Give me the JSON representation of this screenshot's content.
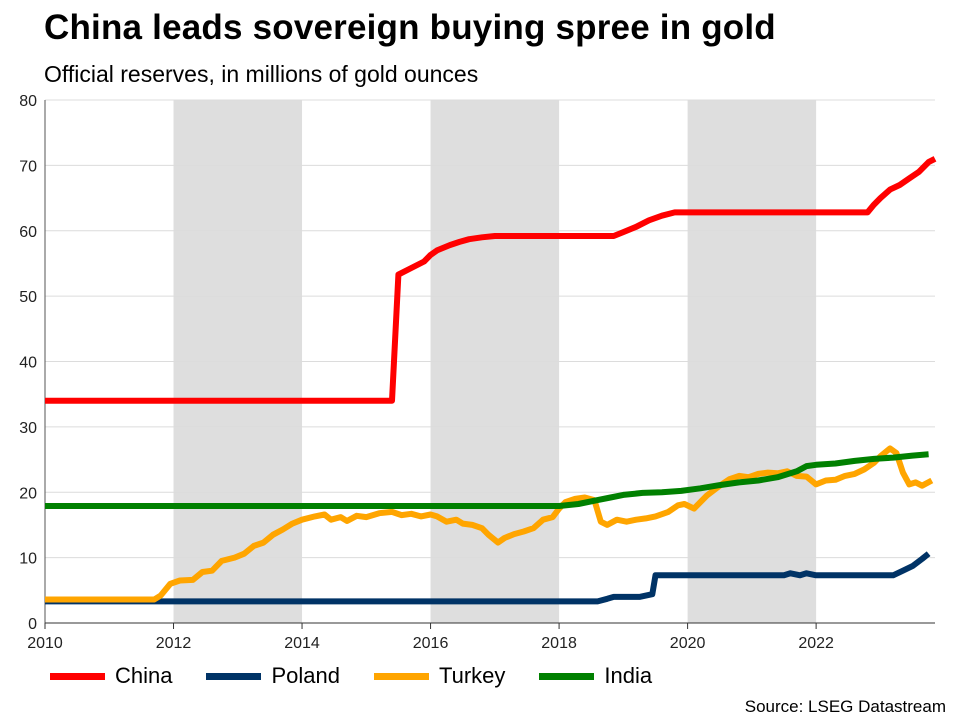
{
  "title": "China leads sovereign buying spree in gold",
  "subtitle": "Official reserves, in millions of gold ounces",
  "source": "Source: LSEG Datastream",
  "chart_data": {
    "type": "line",
    "xlim": [
      2010,
      2023.85
    ],
    "ylim": [
      0,
      80
    ],
    "x_ticks": [
      2010,
      2012,
      2014,
      2016,
      2018,
      2020,
      2022
    ],
    "y_ticks": [
      0,
      10,
      20,
      30,
      40,
      50,
      60,
      70,
      80
    ],
    "shaded_periods": [
      [
        2012,
        2014
      ],
      [
        2016,
        2018
      ],
      [
        2020,
        2022
      ]
    ],
    "grid": "horizontal",
    "series": [
      {
        "name": "China",
        "color": "#ff0000",
        "points": [
          [
            2010.0,
            34.0
          ],
          [
            2015.4,
            34.0
          ],
          [
            2015.5,
            53.3
          ],
          [
            2015.7,
            54.3
          ],
          [
            2015.9,
            55.3
          ],
          [
            2016.0,
            56.3
          ],
          [
            2016.1,
            57.0
          ],
          [
            2016.3,
            57.8
          ],
          [
            2016.45,
            58.3
          ],
          [
            2016.6,
            58.7
          ],
          [
            2016.8,
            59.0
          ],
          [
            2017.0,
            59.2
          ],
          [
            2018.85,
            59.2
          ],
          [
            2019.0,
            59.8
          ],
          [
            2019.2,
            60.6
          ],
          [
            2019.4,
            61.6
          ],
          [
            2019.6,
            62.3
          ],
          [
            2019.8,
            62.8
          ],
          [
            2022.8,
            62.8
          ],
          [
            2022.9,
            64.0
          ],
          [
            2023.0,
            65.0
          ],
          [
            2023.15,
            66.3
          ],
          [
            2023.3,
            67.0
          ],
          [
            2023.45,
            68.0
          ],
          [
            2023.6,
            69.0
          ],
          [
            2023.75,
            70.5
          ],
          [
            2023.85,
            71.0
          ]
        ]
      },
      {
        "name": "Poland",
        "color": "#003366",
        "points": [
          [
            2010.0,
            3.3
          ],
          [
            2018.6,
            3.3
          ],
          [
            2018.75,
            3.7
          ],
          [
            2018.85,
            4.0
          ],
          [
            2019.25,
            4.0
          ],
          [
            2019.45,
            4.4
          ],
          [
            2019.5,
            7.3
          ],
          [
            2021.5,
            7.3
          ],
          [
            2021.6,
            7.6
          ],
          [
            2021.75,
            7.3
          ],
          [
            2021.85,
            7.6
          ],
          [
            2022.0,
            7.3
          ],
          [
            2023.2,
            7.3
          ],
          [
            2023.35,
            8.0
          ],
          [
            2023.5,
            8.7
          ],
          [
            2023.65,
            9.8
          ],
          [
            2023.75,
            10.6
          ]
        ]
      },
      {
        "name": "Turkey",
        "color": "#ffa500",
        "points": [
          [
            2010.0,
            3.6
          ],
          [
            2011.7,
            3.6
          ],
          [
            2011.8,
            4.2
          ],
          [
            2011.95,
            6.0
          ],
          [
            2012.1,
            6.5
          ],
          [
            2012.3,
            6.6
          ],
          [
            2012.45,
            7.8
          ],
          [
            2012.6,
            8.0
          ],
          [
            2012.75,
            9.5
          ],
          [
            2012.95,
            10.0
          ],
          [
            2013.1,
            10.6
          ],
          [
            2013.25,
            11.8
          ],
          [
            2013.4,
            12.3
          ],
          [
            2013.55,
            13.5
          ],
          [
            2013.7,
            14.3
          ],
          [
            2013.85,
            15.2
          ],
          [
            2014.0,
            15.8
          ],
          [
            2014.2,
            16.3
          ],
          [
            2014.35,
            16.6
          ],
          [
            2014.45,
            15.8
          ],
          [
            2014.6,
            16.2
          ],
          [
            2014.7,
            15.6
          ],
          [
            2014.85,
            16.4
          ],
          [
            2015.0,
            16.2
          ],
          [
            2015.2,
            16.8
          ],
          [
            2015.4,
            17.0
          ],
          [
            2015.55,
            16.5
          ],
          [
            2015.7,
            16.7
          ],
          [
            2015.85,
            16.3
          ],
          [
            2016.0,
            16.6
          ],
          [
            2016.1,
            16.3
          ],
          [
            2016.25,
            15.5
          ],
          [
            2016.4,
            15.8
          ],
          [
            2016.5,
            15.2
          ],
          [
            2016.65,
            15.0
          ],
          [
            2016.8,
            14.5
          ],
          [
            2016.9,
            13.5
          ],
          [
            2017.05,
            12.3
          ],
          [
            2017.15,
            13.0
          ],
          [
            2017.3,
            13.6
          ],
          [
            2017.45,
            14.0
          ],
          [
            2017.6,
            14.5
          ],
          [
            2017.75,
            15.8
          ],
          [
            2017.9,
            16.2
          ],
          [
            2018.0,
            17.5
          ],
          [
            2018.1,
            18.5
          ],
          [
            2018.25,
            19.0
          ],
          [
            2018.4,
            19.2
          ],
          [
            2018.55,
            18.8
          ],
          [
            2018.65,
            15.5
          ],
          [
            2018.75,
            15.0
          ],
          [
            2018.9,
            15.8
          ],
          [
            2019.05,
            15.5
          ],
          [
            2019.2,
            15.8
          ],
          [
            2019.35,
            16.0
          ],
          [
            2019.5,
            16.3
          ],
          [
            2019.7,
            17.0
          ],
          [
            2019.85,
            18.0
          ],
          [
            2019.95,
            18.2
          ],
          [
            2020.1,
            17.5
          ],
          [
            2020.3,
            19.5
          ],
          [
            2020.5,
            21.0
          ],
          [
            2020.65,
            22.0
          ],
          [
            2020.8,
            22.5
          ],
          [
            2020.95,
            22.3
          ],
          [
            2021.1,
            22.8
          ],
          [
            2021.25,
            23.0
          ],
          [
            2021.4,
            22.9
          ],
          [
            2021.55,
            23.2
          ],
          [
            2021.7,
            22.5
          ],
          [
            2021.85,
            22.4
          ],
          [
            2022.0,
            21.2
          ],
          [
            2022.15,
            21.8
          ],
          [
            2022.3,
            21.9
          ],
          [
            2022.45,
            22.5
          ],
          [
            2022.6,
            22.8
          ],
          [
            2022.75,
            23.5
          ],
          [
            2022.9,
            24.5
          ],
          [
            2023.0,
            25.5
          ],
          [
            2023.15,
            26.7
          ],
          [
            2023.25,
            26.0
          ],
          [
            2023.35,
            23.0
          ],
          [
            2023.45,
            21.2
          ],
          [
            2023.55,
            21.5
          ],
          [
            2023.65,
            21.0
          ],
          [
            2023.8,
            21.8
          ]
        ]
      },
      {
        "name": "India",
        "color": "#008000",
        "points": [
          [
            2010.0,
            17.9
          ],
          [
            2018.0,
            17.9
          ],
          [
            2018.3,
            18.2
          ],
          [
            2018.6,
            18.8
          ],
          [
            2018.8,
            19.2
          ],
          [
            2019.0,
            19.6
          ],
          [
            2019.3,
            19.9
          ],
          [
            2019.6,
            20.0
          ],
          [
            2019.9,
            20.2
          ],
          [
            2020.2,
            20.6
          ],
          [
            2020.5,
            21.1
          ],
          [
            2020.8,
            21.5
          ],
          [
            2021.1,
            21.8
          ],
          [
            2021.4,
            22.3
          ],
          [
            2021.7,
            23.2
          ],
          [
            2021.85,
            24.0
          ],
          [
            2022.0,
            24.2
          ],
          [
            2022.3,
            24.4
          ],
          [
            2022.6,
            24.8
          ],
          [
            2022.9,
            25.1
          ],
          [
            2023.2,
            25.3
          ],
          [
            2023.5,
            25.6
          ],
          [
            2023.75,
            25.8
          ]
        ]
      }
    ]
  }
}
